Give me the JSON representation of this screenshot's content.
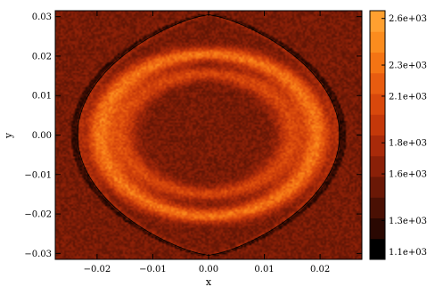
{
  "chart_data": {
    "type": "heatmap",
    "title": "",
    "xlabel": "x",
    "ylabel": "y",
    "xlim": [
      -0.0275,
      0.0275
    ],
    "ylim": [
      -0.0315,
      0.0315
    ],
    "x_ticks": [
      {
        "value": -0.02,
        "label": "−0.02"
      },
      {
        "value": -0.01,
        "label": "−0.01"
      },
      {
        "value": 0.0,
        "label": "0.00"
      },
      {
        "value": 0.01,
        "label": "0.01"
      },
      {
        "value": 0.02,
        "label": "0.02"
      }
    ],
    "y_ticks": [
      {
        "value": -0.03,
        "label": "−0.03"
      },
      {
        "value": -0.02,
        "label": "−0.02"
      },
      {
        "value": -0.01,
        "label": "−0.01"
      },
      {
        "value": 0.0,
        "label": "0.00"
      },
      {
        "value": 0.01,
        "label": "0.01"
      },
      {
        "value": 0.02,
        "label": "0.02"
      },
      {
        "value": 0.03,
        "label": "0.03"
      }
    ],
    "colorbar": {
      "range": [
        1050.0,
        2650.0
      ],
      "ticks": [
        {
          "value": 1100.0,
          "label": "1.1e+03"
        },
        {
          "value": 1300.0,
          "label": "1.3e+03"
        },
        {
          "value": 1600.0,
          "label": "1.6e+03"
        },
        {
          "value": 1800.0,
          "label": "1.8e+03"
        },
        {
          "value": 2100.0,
          "label": "2.1e+03"
        },
        {
          "value": 2300.0,
          "label": "2.3e+03"
        },
        {
          "value": 2600.0,
          "label": "2.6e+03"
        }
      ],
      "colors": [
        "#000000",
        "#2a0802",
        "#4a1004",
        "#6a1806",
        "#8a2008",
        "#a82a0a",
        "#c4380a",
        "#d8480c",
        "#e85c10",
        "#f47414",
        "#fb8c1e",
        "#ffa030"
      ]
    },
    "field": {
      "background_level": 1550.0,
      "lens_shape": {
        "tip_y": 0.0305,
        "max_half_width": 0.0235
      },
      "rings": [
        {
          "name": "outer",
          "cx": 0.0,
          "cy": 0.0,
          "rx": 0.0195,
          "ry": 0.0205,
          "peak_level": 2350.0
        },
        {
          "name": "inner",
          "cx": -0.0003,
          "cy": 0.0003,
          "rx": 0.0152,
          "ry": 0.0152,
          "peak_level": 2050.0
        }
      ]
    },
    "grid": false,
    "legend": "colorbar-right"
  }
}
